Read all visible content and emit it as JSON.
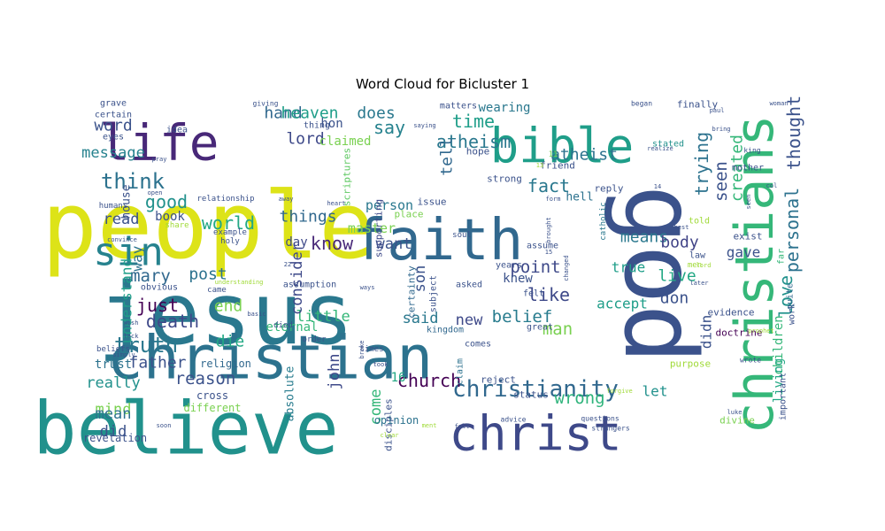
{
  "chart_data": {
    "type": "wordcloud",
    "title": "Word Cloud for Bicluster 1",
    "colormap": "viridis",
    "words": [
      {
        "text": "people",
        "size": 104,
        "color": "#dde318"
      },
      {
        "text": "jesus",
        "size": 96,
        "color": "#2a788e"
      },
      {
        "text": "god",
        "size": 112,
        "color": "#3b528b",
        "rotate": 90
      },
      {
        "text": "believe",
        "size": 82,
        "color": "#21918c"
      },
      {
        "text": "christian",
        "size": 68,
        "color": "#2c728e"
      },
      {
        "text": "christians",
        "size": 60,
        "color": "#35b779",
        "rotate": -90
      },
      {
        "text": "faith",
        "size": 64,
        "color": "#31688e"
      },
      {
        "text": "bible",
        "size": 54,
        "color": "#1f9e89"
      },
      {
        "text": "christ",
        "size": 54,
        "color": "#3e4989"
      },
      {
        "text": "life",
        "size": 56,
        "color": "#482878"
      },
      {
        "text": "sin",
        "size": 44,
        "color": "#26828e"
      },
      {
        "text": "christianity",
        "size": 26,
        "color": "#31688e"
      },
      {
        "text": "truth",
        "size": 24,
        "color": "#2a788e"
      },
      {
        "text": "think",
        "size": 24,
        "color": "#2c728e"
      },
      {
        "text": "church",
        "size": 20,
        "color": "#440154"
      },
      {
        "text": "atheism",
        "size": 20,
        "color": "#2a788e"
      },
      {
        "text": "personal",
        "size": 20,
        "color": "#2c728e",
        "rotate": -90
      },
      {
        "text": "thought",
        "size": 20,
        "color": "#3b528b",
        "rotate": -90
      },
      {
        "text": "death",
        "size": 20,
        "color": "#3e4989"
      },
      {
        "text": "world",
        "size": 20,
        "color": "#22a884"
      },
      {
        "text": "good",
        "size": 20,
        "color": "#21918c"
      },
      {
        "text": "just",
        "size": 20,
        "color": "#440154"
      },
      {
        "text": "fact",
        "size": 20,
        "color": "#2a788e"
      },
      {
        "text": "love",
        "size": 20,
        "color": "#21918c",
        "rotate": -90
      },
      {
        "text": "reason",
        "size": 19,
        "color": "#3b528b"
      },
      {
        "text": "time",
        "size": 20,
        "color": "#1f9e89"
      },
      {
        "text": "wrong",
        "size": 19,
        "color": "#2fb47c"
      },
      {
        "text": "belief",
        "size": 19,
        "color": "#287c8e"
      },
      {
        "text": "point",
        "size": 19,
        "color": "#3e4989"
      },
      {
        "text": "like",
        "size": 20,
        "color": "#3e4989"
      },
      {
        "text": "know",
        "size": 20,
        "color": "#482878"
      },
      {
        "text": "say",
        "size": 20,
        "color": "#26828e"
      },
      {
        "text": "mary",
        "size": 19,
        "color": "#31688e"
      },
      {
        "text": "trying",
        "size": 20,
        "color": "#2c728e",
        "rotate": -90
      },
      {
        "text": "seen",
        "size": 19,
        "color": "#3b528b",
        "rotate": -90
      },
      {
        "text": "atheist",
        "size": 18,
        "color": "#2c728e"
      },
      {
        "text": "created",
        "size": 18,
        "color": "#35b779",
        "rotate": -90
      },
      {
        "text": "man",
        "size": 19,
        "color": "#7ad151"
      },
      {
        "text": "father",
        "size": 18,
        "color": "#3b528b"
      },
      {
        "text": "die",
        "size": 18,
        "color": "#22a884"
      },
      {
        "text": "end",
        "size": 18,
        "color": "#7ad151"
      },
      {
        "text": "post",
        "size": 18,
        "color": "#2c728e"
      },
      {
        "text": "things",
        "size": 18,
        "color": "#31688e"
      },
      {
        "text": "lord",
        "size": 18,
        "color": "#3e4989"
      },
      {
        "text": "hand",
        "size": 18,
        "color": "#31688e"
      },
      {
        "text": "heaven",
        "size": 18,
        "color": "#1f9e89"
      },
      {
        "text": "does",
        "size": 18,
        "color": "#2a788e"
      },
      {
        "text": "tell",
        "size": 18,
        "color": "#31688e",
        "rotate": -90
      },
      {
        "text": "means",
        "size": 18,
        "color": "#2a788e"
      },
      {
        "text": "body",
        "size": 18,
        "color": "#414487"
      },
      {
        "text": "live",
        "size": 18,
        "color": "#22a884"
      },
      {
        "text": "don",
        "size": 18,
        "color": "#3b528b"
      },
      {
        "text": "word",
        "size": 18,
        "color": "#3b528b"
      },
      {
        "text": "message",
        "size": 17,
        "color": "#26828e"
      },
      {
        "text": "really",
        "size": 17,
        "color": "#21918c"
      },
      {
        "text": "mind",
        "size": 17,
        "color": "#7ad151"
      },
      {
        "text": "mean",
        "size": 17,
        "color": "#2c728e"
      },
      {
        "text": "did",
        "size": 17,
        "color": "#3b528b"
      },
      {
        "text": "read",
        "size": 17,
        "color": "#3b528b"
      },
      {
        "text": "want",
        "size": 17,
        "color": "#3b528b"
      },
      {
        "text": "new",
        "size": 17,
        "color": "#3e4989"
      },
      {
        "text": "said",
        "size": 17,
        "color": "#2a788e"
      },
      {
        "text": "little",
        "size": 17,
        "color": "#35b779"
      },
      {
        "text": "consider",
        "size": 17,
        "color": "#3e4989",
        "rotate": -90
      },
      {
        "text": "john",
        "size": 17,
        "color": "#3e4989",
        "rotate": -90
      },
      {
        "text": "come",
        "size": 17,
        "color": "#35b779",
        "rotate": -90
      },
      {
        "text": "son",
        "size": 17,
        "color": "#3b528b",
        "rotate": -90
      },
      {
        "text": "accept",
        "size": 16,
        "color": "#1f9e89"
      },
      {
        "text": "true",
        "size": 16,
        "color": "#1f9e89"
      },
      {
        "text": "gave",
        "size": 16,
        "color": "#3b528b"
      },
      {
        "text": "let",
        "size": 16,
        "color": "#21918c"
      },
      {
        "text": "understand",
        "size": 16,
        "color": "#1f9e89",
        "rotate": -90
      },
      {
        "text": "way",
        "size": 16,
        "color": "#2c728e",
        "rotate": -90
      },
      {
        "text": "didn",
        "size": 16,
        "color": "#3b528b",
        "rotate": -90
      },
      {
        "text": "children",
        "size": 14,
        "color": "#35b779",
        "rotate": -90
      },
      {
        "text": "living",
        "size": 14,
        "color": "#22a884",
        "rotate": -90
      },
      {
        "text": "master",
        "size": 15,
        "color": "#7ad151"
      },
      {
        "text": "person",
        "size": 15,
        "color": "#2a788e"
      },
      {
        "text": "claimed",
        "size": 14,
        "color": "#7ad151"
      },
      {
        "text": "wearing",
        "size": 14,
        "color": "#2a788e"
      },
      {
        "text": "hon",
        "size": 14,
        "color": "#3b528b"
      },
      {
        "text": "book",
        "size": 14,
        "color": "#3b528b"
      },
      {
        "text": "day",
        "size": 14,
        "color": "#3e4989"
      },
      {
        "text": "16",
        "size": 14,
        "color": "#22a884"
      },
      {
        "text": "trust",
        "size": 14,
        "color": "#2c728e"
      },
      {
        "text": "eternal",
        "size": 14,
        "color": "#35b779"
      },
      {
        "text": "knew",
        "size": 14,
        "color": "#3b528b"
      },
      {
        "text": "hell",
        "size": 13,
        "color": "#2c728e"
      },
      {
        "text": "house",
        "size": 13,
        "color": "#3b528b",
        "rotate": -90
      },
      {
        "text": "absolute",
        "size": 13,
        "color": "#287c8e",
        "rotate": -90
      },
      {
        "text": "disciples",
        "size": 11,
        "color": "#3b528b",
        "rotate": -90
      },
      {
        "text": "scriptures",
        "size": 11,
        "color": "#5ec962",
        "rotate": -90
      },
      {
        "text": "supporting",
        "size": 11,
        "color": "#3e4989",
        "rotate": -90
      },
      {
        "text": "certainty",
        "size": 11,
        "color": "#31688e",
        "rotate": -90
      },
      {
        "text": "subject",
        "size": 10,
        "color": "#3b528b",
        "rotate": -90
      },
      {
        "text": "claim",
        "size": 10,
        "color": "#2c728e",
        "rotate": -90
      },
      {
        "text": "important",
        "size": 10,
        "color": "#3b528b",
        "rotate": -90
      },
      {
        "text": "work",
        "size": 10,
        "color": "#3b528b",
        "rotate": -90
      },
      {
        "text": "quite",
        "size": 10,
        "color": "#31688e",
        "rotate": -90
      },
      {
        "text": "far",
        "size": 10,
        "color": "#35b779",
        "rotate": -90
      },
      {
        "text": "catholic",
        "size": 9,
        "color": "#2a788e",
        "rotate": -90
      },
      {
        "text": "religion",
        "size": 12,
        "color": "#31688e"
      },
      {
        "text": "cross",
        "size": 12,
        "color": "#3b528b"
      },
      {
        "text": "different",
        "size": 12,
        "color": "#7ad151"
      },
      {
        "text": "revelation",
        "size": 12,
        "color": "#3b528b"
      },
      {
        "text": "opinion",
        "size": 12,
        "color": "#2c728e"
      },
      {
        "text": "kingdom",
        "size": 10,
        "color": "#31688e"
      },
      {
        "text": "reject",
        "size": 11,
        "color": "#3b528b"
      },
      {
        "text": "status",
        "size": 11,
        "color": "#3b528b"
      },
      {
        "text": "evidence",
        "size": 11,
        "color": "#3b528b"
      },
      {
        "text": "doctrine",
        "size": 11,
        "color": "#440154"
      },
      {
        "text": "divine",
        "size": 11,
        "color": "#7ad151"
      },
      {
        "text": "purpose",
        "size": 11,
        "color": "#a0da39"
      },
      {
        "text": "issue",
        "size": 11,
        "color": "#3b528b"
      },
      {
        "text": "place",
        "size": 11,
        "color": "#7ad151"
      },
      {
        "text": "strong",
        "size": 11,
        "color": "#3b528b"
      },
      {
        "text": "reply",
        "size": 11,
        "color": "#3b528b"
      },
      {
        "text": "friend",
        "size": 11,
        "color": "#3b528b"
      },
      {
        "text": "hope",
        "size": 11,
        "color": "#3b528b"
      },
      {
        "text": "matters",
        "size": 10,
        "color": "#3b528b"
      },
      {
        "text": "stated",
        "size": 10,
        "color": "#21918c"
      },
      {
        "text": "finally",
        "size": 11,
        "color": "#3b528b"
      },
      {
        "text": "mother",
        "size": 10,
        "color": "#3b528b"
      },
      {
        "text": "exist",
        "size": 11,
        "color": "#3b528b"
      },
      {
        "text": "told",
        "size": 10,
        "color": "#a0da39"
      },
      {
        "text": "law",
        "size": 10,
        "color": "#3b528b"
      },
      {
        "text": "men",
        "size": 9,
        "color": "#a0da39"
      },
      {
        "text": "years",
        "size": 10,
        "color": "#3b528b"
      },
      {
        "text": "felt",
        "size": 10,
        "color": "#3b528b"
      },
      {
        "text": "great",
        "size": 10,
        "color": "#3b528b"
      },
      {
        "text": "comes",
        "size": 10,
        "color": "#3b528b"
      },
      {
        "text": "asked",
        "size": 10,
        "color": "#3b528b"
      },
      {
        "text": "assume",
        "size": 10,
        "color": "#3b528b"
      },
      {
        "text": "assumption",
        "size": 10,
        "color": "#3b528b"
      },
      {
        "text": "obvious",
        "size": 10,
        "color": "#3b528b"
      },
      {
        "text": "came",
        "size": 9,
        "color": "#3b528b"
      },
      {
        "text": "died",
        "size": 9,
        "color": "#3b528b"
      },
      {
        "text": "order",
        "size": 9,
        "color": "#3b528b"
      },
      {
        "text": "times",
        "size": 9,
        "color": "#3b528b"
      },
      {
        "text": "humans",
        "size": 9,
        "color": "#3b528b"
      },
      {
        "text": "relationship",
        "size": 9,
        "color": "#3b528b"
      },
      {
        "text": "example",
        "size": 9,
        "color": "#3b528b"
      },
      {
        "text": "holy",
        "size": 9,
        "color": "#3b528b"
      },
      {
        "text": "beliefs",
        "size": 9,
        "color": "#3b528b"
      },
      {
        "text": "share",
        "size": 9,
        "color": "#a0da39"
      },
      {
        "text": "grave",
        "size": 10,
        "color": "#3b528b"
      },
      {
        "text": "certain",
        "size": 10,
        "color": "#3b528b"
      },
      {
        "text": "eyes",
        "size": 10,
        "color": "#3b528b"
      },
      {
        "text": "idea",
        "size": 10,
        "color": "#3b528b"
      },
      {
        "text": "thing",
        "size": 10,
        "color": "#3b528b"
      },
      {
        "text": "soul",
        "size": 9,
        "color": "#3b528b"
      },
      {
        "text": "advice",
        "size": 8,
        "color": "#3b528b"
      },
      {
        "text": "questions",
        "size": 8,
        "color": "#3b528b"
      },
      {
        "text": "strangers",
        "size": 8,
        "color": "#3b528b"
      },
      {
        "text": "wrote",
        "size": 8,
        "color": "#3b528b"
      },
      {
        "text": "forgive",
        "size": 7,
        "color": "#a0da39"
      },
      {
        "text": "11",
        "size": 9,
        "color": "#7ad151"
      },
      {
        "text": "giving",
        "size": 8,
        "color": "#3b528b"
      },
      {
        "text": "began",
        "size": 8,
        "color": "#3b528b"
      },
      {
        "text": "woman",
        "size": 7,
        "color": "#3b528b"
      },
      {
        "text": "king",
        "size": 8,
        "color": "#3b528b"
      },
      {
        "text": "realize",
        "size": 7,
        "color": "#3b528b"
      },
      {
        "text": "pray",
        "size": 7,
        "color": "#3b528b"
      },
      {
        "text": "open",
        "size": 7,
        "color": "#3b528b"
      },
      {
        "text": "heart",
        "size": 7,
        "color": "#3b528b"
      },
      {
        "text": "saying",
        "size": 7,
        "color": "#3b528b"
      },
      {
        "text": "simply",
        "size": 7,
        "color": "#3b528b"
      },
      {
        "text": "basic",
        "size": 7,
        "color": "#3b528b"
      },
      {
        "text": "wish",
        "size": 7,
        "color": "#3b528b"
      },
      {
        "text": "lack",
        "size": 7,
        "color": "#3b528b"
      },
      {
        "text": "soon",
        "size": 7,
        "color": "#3b528b"
      },
      {
        "text": "understanding",
        "size": 7,
        "color": "#a0da39"
      },
      {
        "text": "convince",
        "size": 7,
        "color": "#3b528b"
      },
      {
        "text": "best",
        "size": 7,
        "color": "#3b528b"
      },
      {
        "text": "later",
        "size": 7,
        "color": "#3b528b"
      },
      {
        "text": "luke",
        "size": 7,
        "color": "#3b528b"
      },
      {
        "text": "clear",
        "size": 7,
        "color": "#a0da39"
      },
      {
        "text": "fall",
        "size": 7,
        "color": "#3b528b"
      },
      {
        "text": "took",
        "size": 7,
        "color": "#3b528b"
      },
      {
        "text": "ways",
        "size": 7,
        "color": "#3b528b"
      },
      {
        "text": "paul",
        "size": 7,
        "color": "#3b528b"
      },
      {
        "text": "bring",
        "size": 7,
        "color": "#3b528b"
      },
      {
        "text": "brought",
        "size": 7,
        "color": "#3b528b",
        "rotate": -90
      },
      {
        "text": "changed",
        "size": 7,
        "color": "#3b528b",
        "rotate": -90
      },
      {
        "text": "col",
        "size": 7,
        "color": "#3b528b"
      },
      {
        "text": "broke",
        "size": 7,
        "color": "#3b528b",
        "rotate": -90
      },
      {
        "text": "14",
        "size": 7,
        "color": "#3b528b"
      },
      {
        "text": "15",
        "size": 7,
        "color": "#3b528b"
      },
      {
        "text": "22",
        "size": 7,
        "color": "#3b528b"
      },
      {
        "text": "13",
        "size": 7,
        "color": "#a0da39"
      },
      {
        "text": "away",
        "size": 7,
        "color": "#3b528b"
      },
      {
        "text": "lord",
        "size": 7,
        "color": "#a0da39"
      },
      {
        "text": "ment",
        "size": 7,
        "color": "#a0da39"
      },
      {
        "text": "form",
        "size": 7,
        "color": "#3b528b"
      },
      {
        "text": "prophet",
        "size": 7,
        "color": "#a0da39"
      },
      {
        "text": "seen",
        "size": 7,
        "color": "#3b528b",
        "rotate": -90
      }
    ]
  }
}
